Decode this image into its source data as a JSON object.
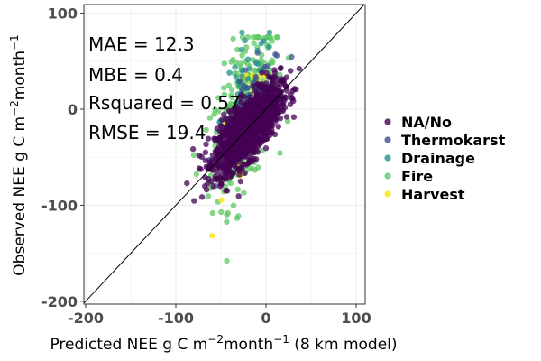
{
  "chart_data": {
    "type": "scatter",
    "xlabel_main": "Predicted NEE g C m",
    "xlabel_sup1": "−2",
    "xlabel_mid": "month",
    "xlabel_sup2": "−1",
    "xlabel_tail": " (8 km model)",
    "ylabel_main": "Observed NEE g C m",
    "ylabel_sup1": "−2",
    "ylabel_mid": "month",
    "ylabel_sup2": "−1",
    "xlim": [
      -202,
      110
    ],
    "ylim": [
      -203,
      109
    ],
    "x_ticks": [
      -200,
      -100,
      0,
      100
    ],
    "x_tick_labels": [
      "-200",
      "-100",
      "0",
      "100"
    ],
    "y_ticks": [
      -200,
      -100,
      0,
      100
    ],
    "y_tick_labels": [
      "-200",
      "-100",
      "0",
      "100"
    ],
    "grid": true,
    "identity_line": true,
    "stats": [
      "MAE = 12.3",
      "MBE = 0.4",
      "Rsquared = 0.57",
      "RMSE = 19.4"
    ],
    "legend_position": "right",
    "series": [
      {
        "name": "NA/No",
        "color": "#440154",
        "opacity": 0.75,
        "n": 1400,
        "cx": -20,
        "cy": -20,
        "sx": 18,
        "sy": 22,
        "rho": 0.72,
        "xmin": -90,
        "xmax": 60,
        "ymin": -115,
        "ymax": 95
      },
      {
        "name": "Thermokarst",
        "color": "#3b528b",
        "opacity": 0.75,
        "n": 60,
        "cx": -15,
        "cy": 5,
        "sx": 18,
        "sy": 25,
        "rho": 0.6,
        "xmin": -80,
        "xmax": 40,
        "ymin": -90,
        "ymax": 60
      },
      {
        "name": "Drainage",
        "color": "#21908d",
        "opacity": 0.75,
        "n": 50,
        "cx": -20,
        "cy": 20,
        "sx": 15,
        "sy": 30,
        "rho": 0.5,
        "xmin": -80,
        "xmax": 30,
        "ymin": -80,
        "ymax": 80
      },
      {
        "name": "Fire",
        "color": "#5dc863",
        "opacity": 0.75,
        "n": 320,
        "cx": -25,
        "cy": -5,
        "sx": 18,
        "sy": 45,
        "rho": 0.55,
        "xmin": -80,
        "xmax": 30,
        "ymin": -190,
        "ymax": 75
      },
      {
        "name": "Harvest",
        "color": "#fde725",
        "opacity": 0.85,
        "n": 35,
        "cx": -20,
        "cy": -15,
        "sx": 20,
        "sy": 45,
        "rho": 0.5,
        "xmin": -80,
        "xmax": 30,
        "ymin": -175,
        "ymax": 35
      }
    ],
    "draw_order": [
      "Fire",
      "Harvest",
      "Drainage",
      "Thermokarst",
      "NA/No"
    ]
  }
}
